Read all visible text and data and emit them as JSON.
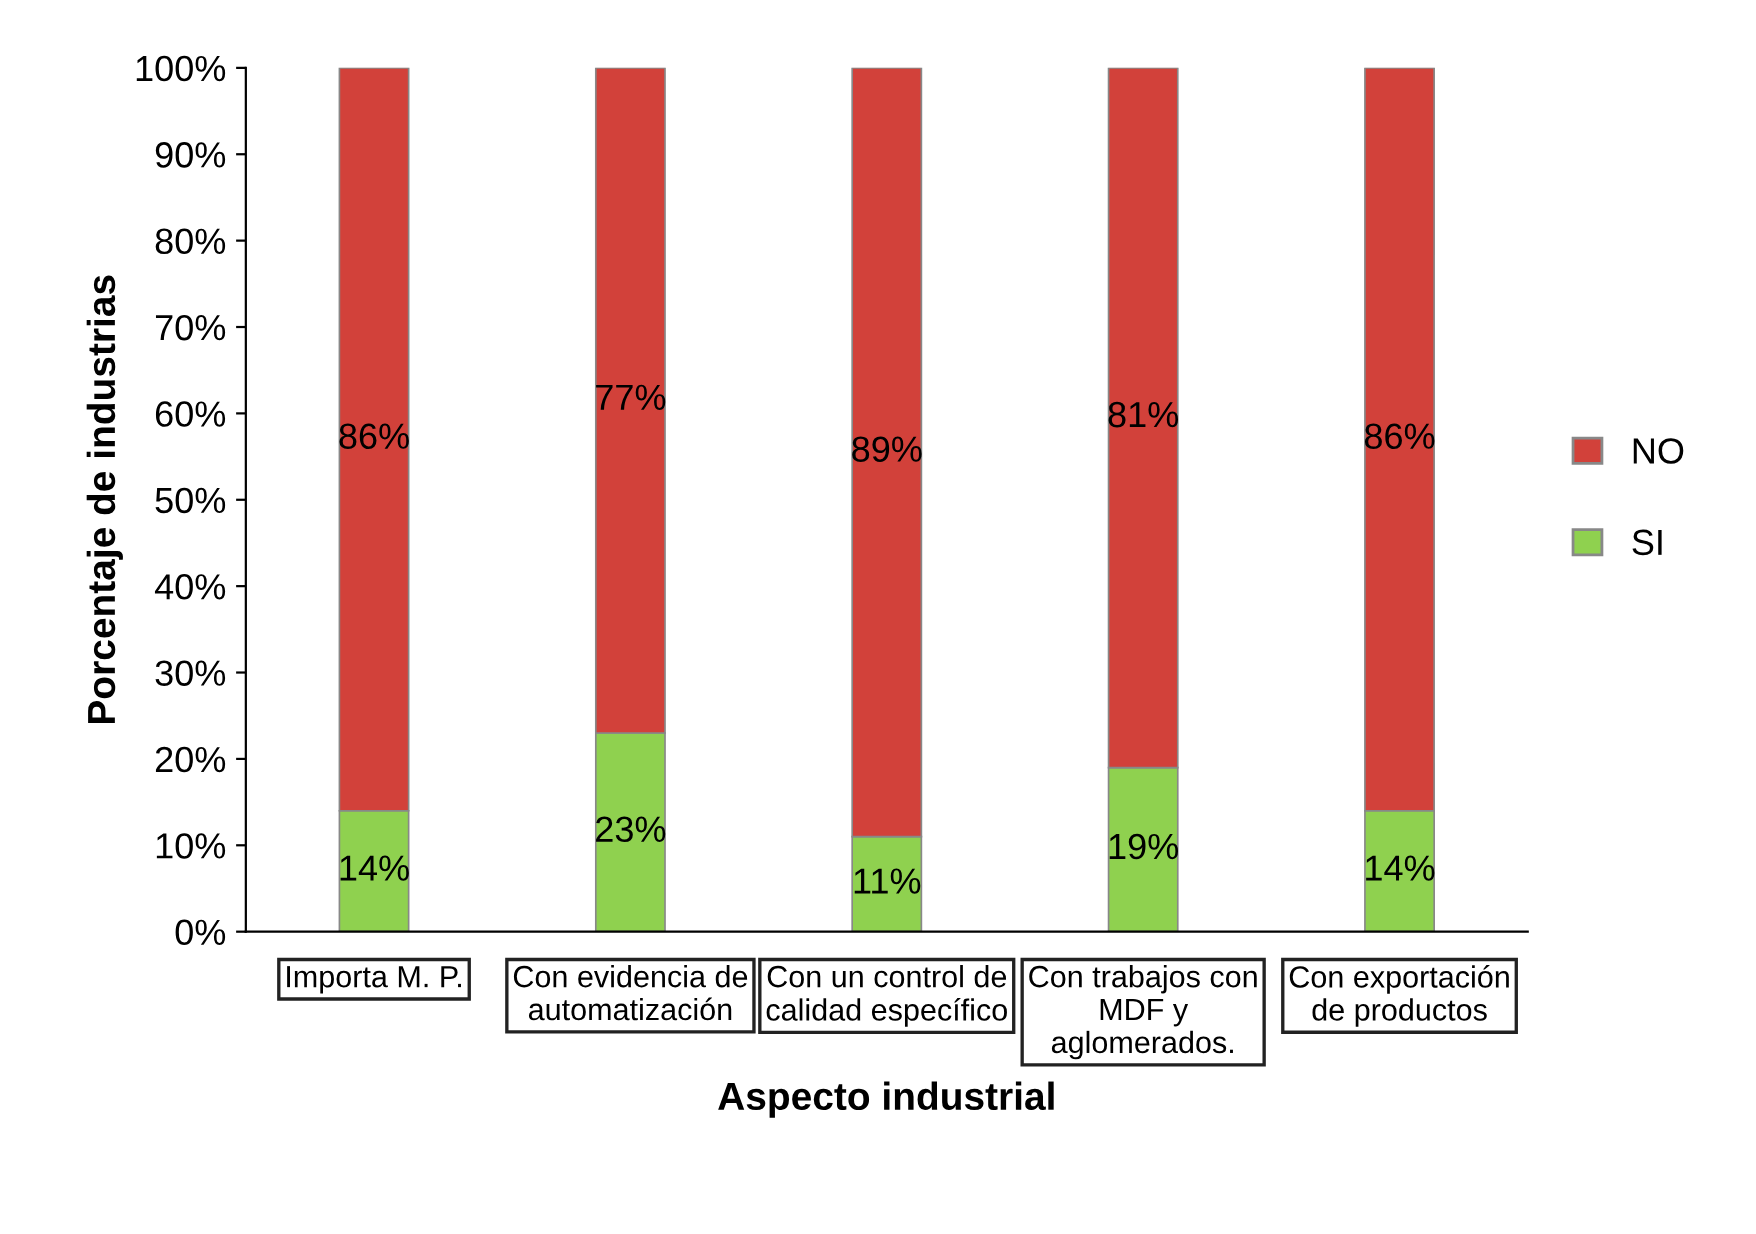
{
  "chart_data": {
    "type": "bar",
    "stacked": true,
    "xlabel": "Aspecto industrial",
    "ylabel": "Porcentaje de industrias",
    "categories": [
      "Importa M. P.",
      "Con evidencia de\nautomatización",
      "Con un control de\ncalidad específico",
      "Con trabajos con\nMDF y\naglomerados.",
      "Con exportación\nde productos"
    ],
    "series": [
      {
        "name": "SI",
        "color": "#8fd14f",
        "values": [
          14,
          23,
          11,
          19,
          14
        ]
      },
      {
        "name": "NO",
        "color": "#d2413a",
        "values": [
          86,
          77,
          89,
          81,
          86
        ]
      }
    ],
    "value_labels": [
      [
        "14%",
        "23%",
        "11%",
        "19%",
        "14%"
      ],
      [
        "86%",
        "77%",
        "89%",
        "81%",
        "86%"
      ]
    ],
    "ylim": [
      0,
      100
    ],
    "yticks": [
      {
        "value": 0,
        "label": "0%"
      },
      {
        "value": 10,
        "label": "10%"
      },
      {
        "value": 20,
        "label": "20%"
      },
      {
        "value": 30,
        "label": "30%"
      },
      {
        "value": 40,
        "label": "40%"
      },
      {
        "value": 50,
        "label": "50%"
      },
      {
        "value": 60,
        "label": "60%"
      },
      {
        "value": 70,
        "label": "70%"
      },
      {
        "value": 80,
        "label": "80%"
      },
      {
        "value": 90,
        "label": "90%"
      },
      {
        "value": 100,
        "label": "100%"
      }
    ],
    "legend": "right",
    "grid": false
  }
}
